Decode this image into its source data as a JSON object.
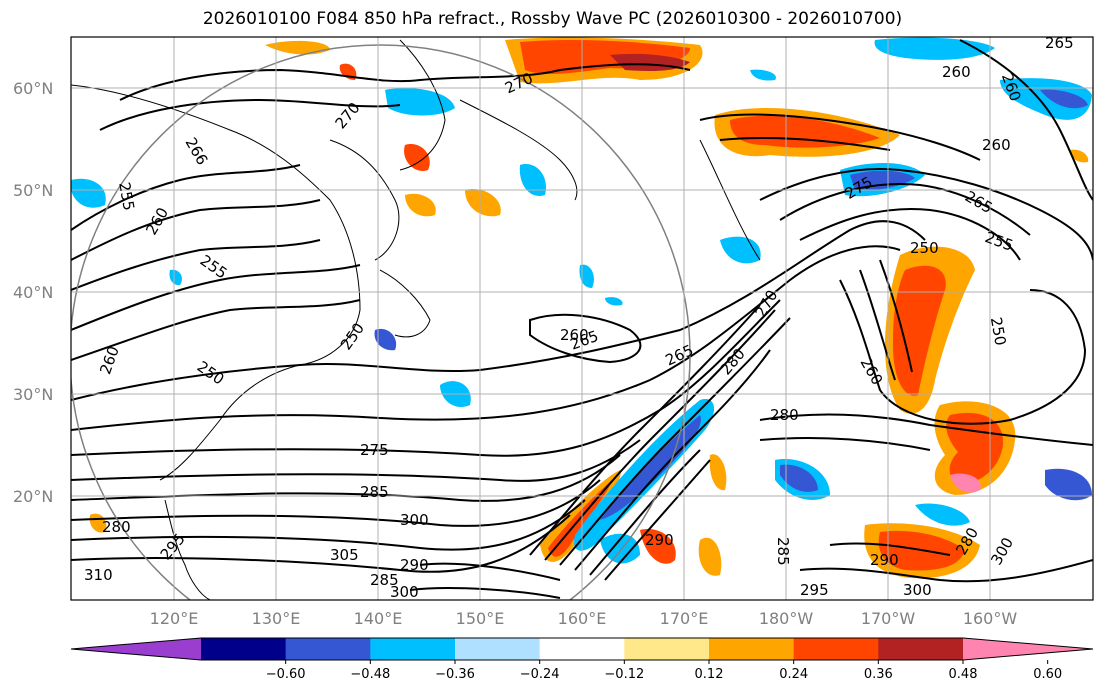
{
  "title": "2026010100 F084 850 hPa refract., Rossby Wave PC (2026010300 - 2026010700)",
  "lat_labels": [
    "60°N",
    "50°N",
    "40°N",
    "30°N",
    "20°N"
  ],
  "lon_labels": [
    "120°E",
    "130°E",
    "140°E",
    "150°E",
    "160°E",
    "170°E",
    "180°W",
    "170°W",
    "160°W"
  ],
  "map_extent": {
    "lon_min": 110,
    "lon_max": 210,
    "lat_min": 10,
    "lat_max": 65
  },
  "contour_labels": [
    "265",
    "260",
    "260",
    "270",
    "270",
    "266",
    "255",
    "260",
    "255",
    "250",
    "260",
    "250",
    "275",
    "285",
    "300",
    "305",
    "280",
    "290",
    "310",
    "285",
    "300",
    "295",
    "265",
    "270",
    "280",
    "280",
    "290",
    "285",
    "295",
    "290",
    "300",
    "280",
    "300",
    "260",
    "250",
    "250",
    "255",
    "265",
    "275",
    "260",
    "265",
    "260"
  ],
  "colorbar": {
    "ticks": [
      "−0.60",
      "−0.48",
      "−0.36",
      "−0.24",
      "−0.12",
      "0.12",
      "0.24",
      "0.36",
      "0.48",
      "0.60"
    ],
    "colors": [
      "#9a3ed0",
      "#00008b",
      "#3557d4",
      "#00bfff",
      "#b0e0ff",
      "#ffffff",
      "#ffe88a",
      "#ffa500",
      "#ff4500",
      "#b22222",
      "#ff85b0"
    ]
  }
}
